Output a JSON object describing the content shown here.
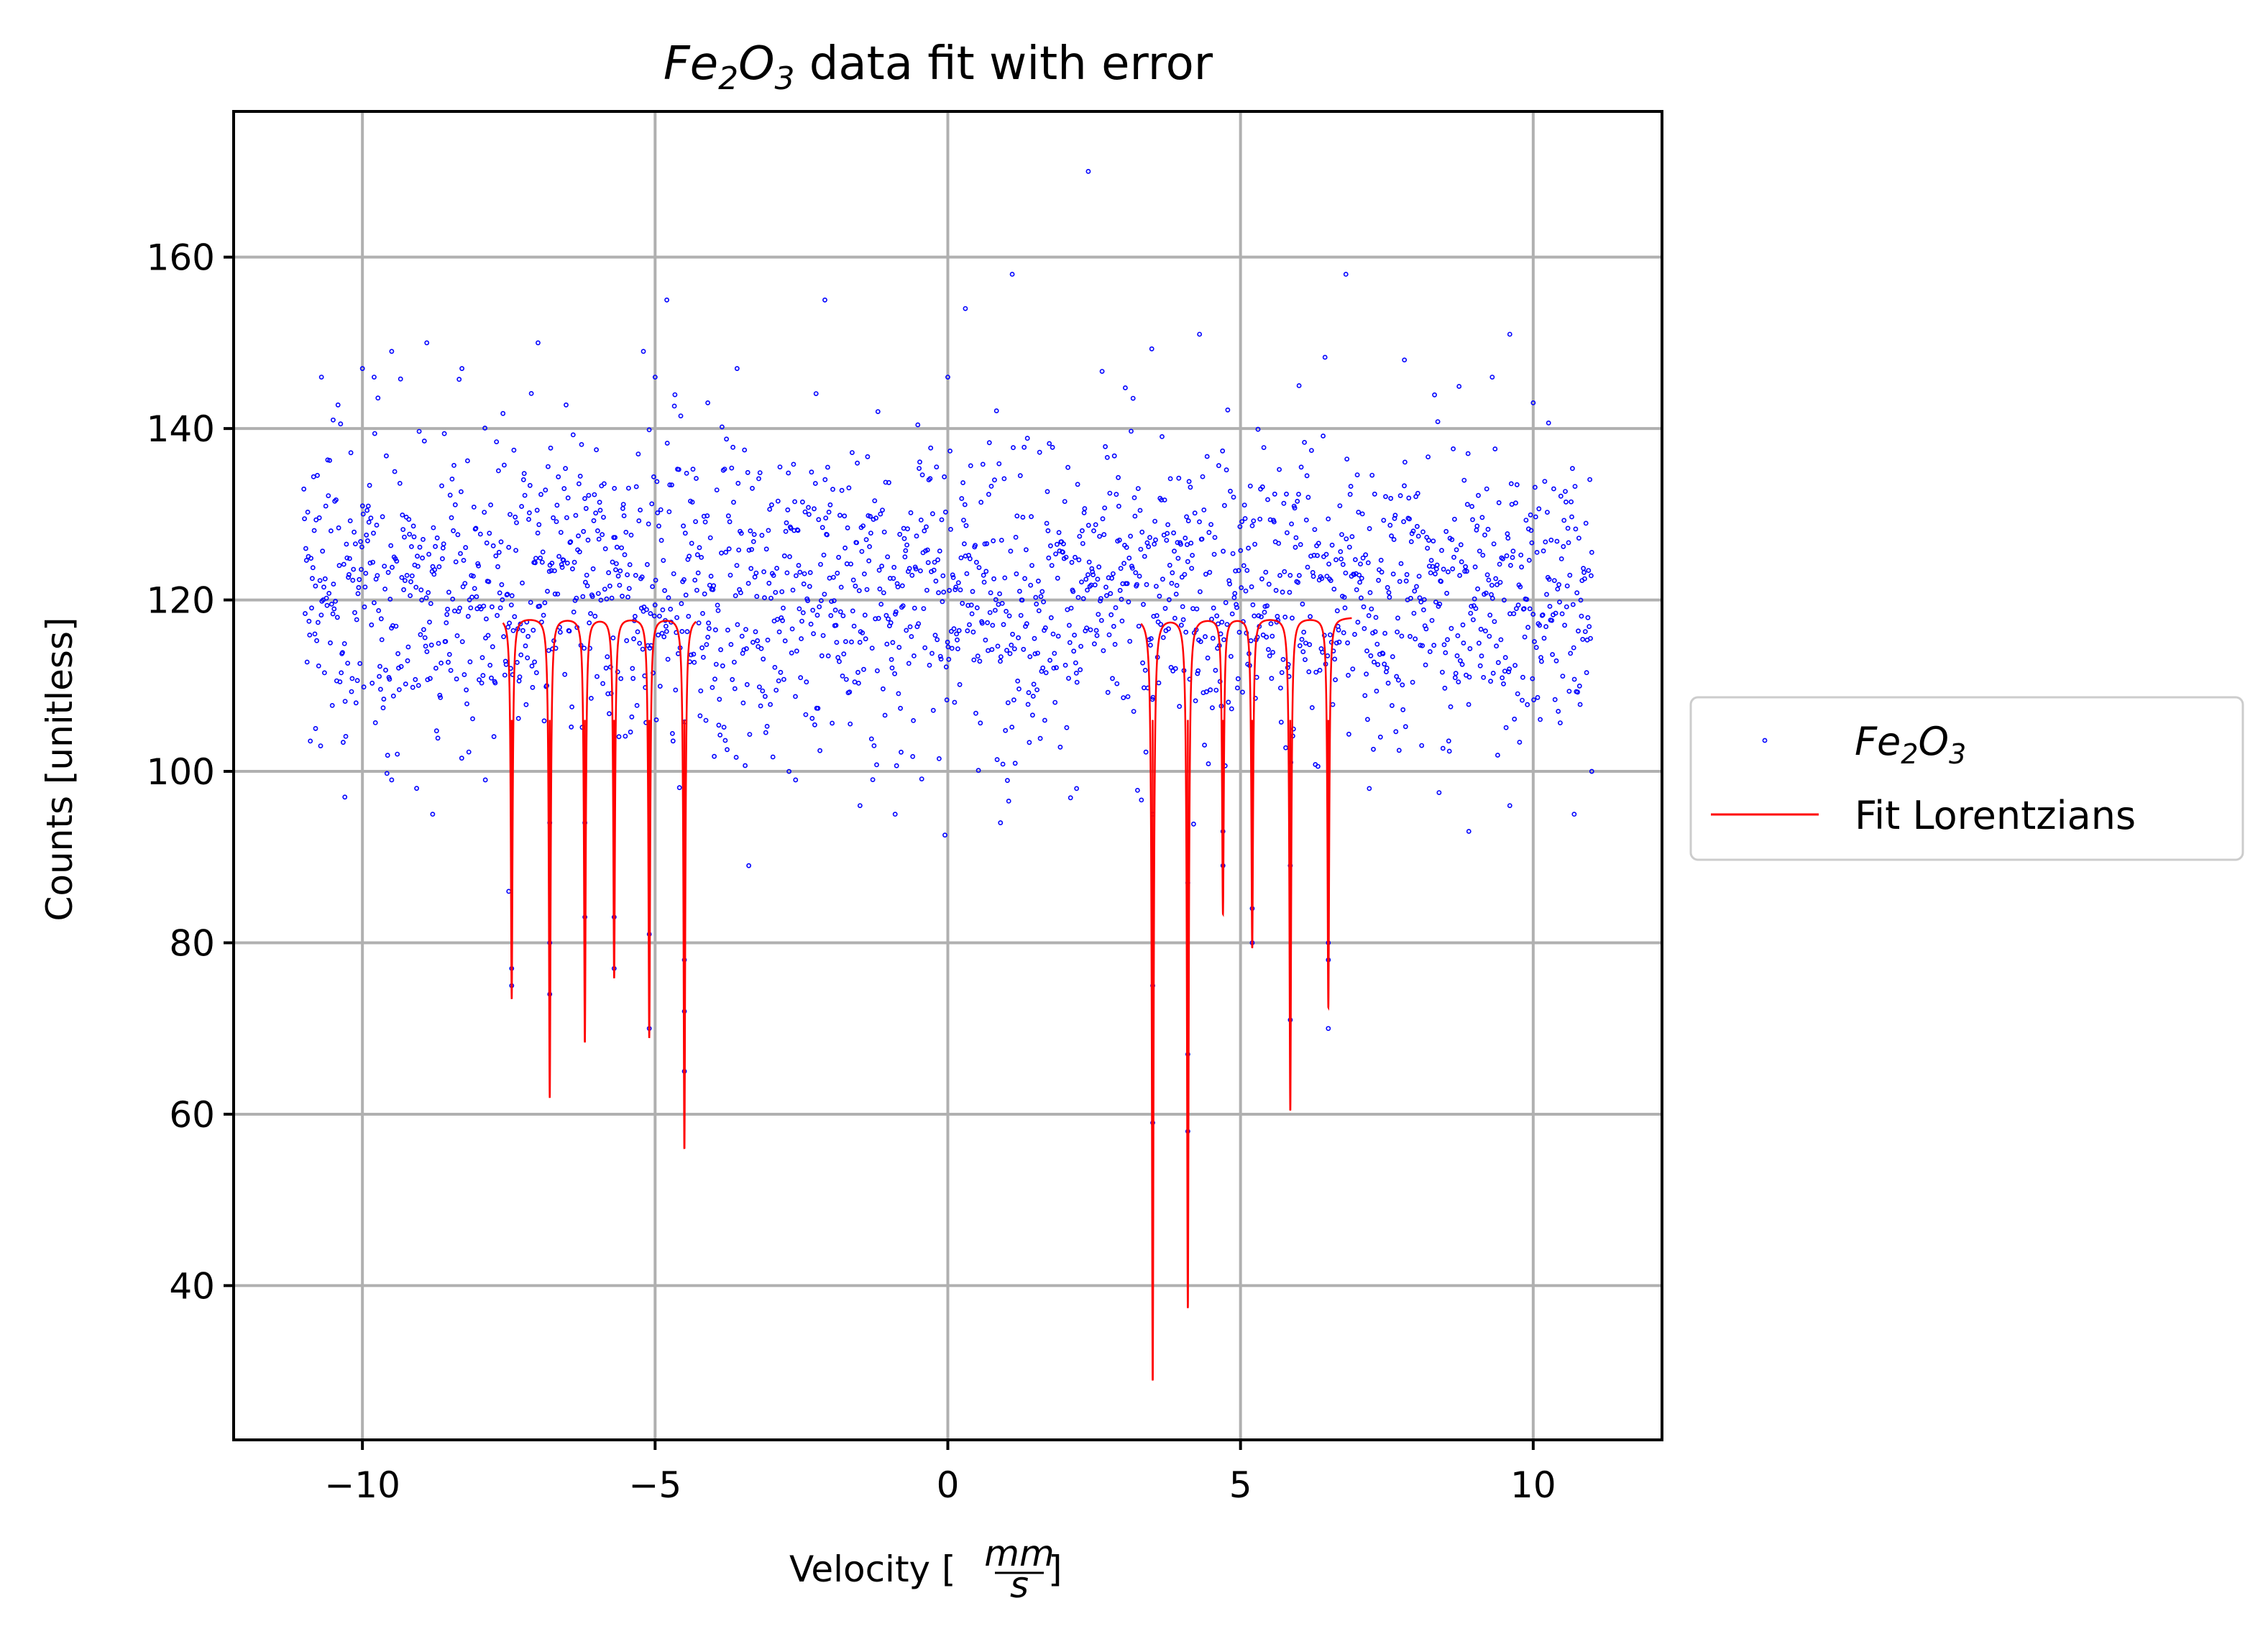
{
  "chart_data": {
    "type": "scatter",
    "title": {
      "base1": "Fe",
      "sub1": "2",
      "base2": "O",
      "sub2": "3",
      "rest": " data fit with error"
    },
    "xlabel": {
      "prefix": "Velocity [",
      "frac_num": "mm",
      "frac_den": "s",
      "suffix": "]"
    },
    "ylabel": "Counts [unitless]",
    "xlim": [
      -12.2,
      12.2
    ],
    "ylim": [
      22,
      177
    ],
    "x_ticks": [
      -10,
      -5,
      0,
      5,
      10
    ],
    "x_tick_labels": [
      "−10",
      "−5",
      "0",
      "5",
      "10"
    ],
    "y_ticks": [
      40,
      60,
      80,
      100,
      120,
      140,
      160
    ],
    "y_tick_labels": [
      "40",
      "60",
      "80",
      "100",
      "120",
      "140",
      "160"
    ],
    "grid": true,
    "legend_placement": "right-outside",
    "legend": [
      {
        "kind": "points",
        "base1": "Fe",
        "sub1": "2",
        "base2": "O",
        "sub2": "3"
      },
      {
        "kind": "line",
        "text": "Fit Lorentzians"
      }
    ],
    "colors": {
      "data": "#0000ff",
      "fit": "#ff0000",
      "grid": "#b0b0b0"
    },
    "scatter": {
      "name": "Fe2O3",
      "x_range": [
        -11,
        11
      ],
      "n_points": 2000,
      "baseline": 121,
      "spread": 9,
      "outliers": [
        [
          2.4,
          170
        ],
        [
          1.1,
          158
        ],
        [
          6.8,
          158
        ],
        [
          -2.1,
          155
        ],
        [
          -4.8,
          155
        ],
        [
          0.3,
          154
        ],
        [
          9.6,
          151
        ],
        [
          4.3,
          151
        ],
        [
          -9.5,
          149
        ],
        [
          -8.9,
          150
        ],
        [
          -7.0,
          150
        ],
        [
          -5.2,
          149
        ],
        [
          -8.3,
          147
        ],
        [
          -10.0,
          147
        ],
        [
          -9.8,
          146
        ],
        [
          -5.0,
          146
        ],
        [
          6.0,
          145
        ],
        [
          9.3,
          146
        ],
        [
          -3.6,
          147
        ],
        [
          -10.7,
          146
        ],
        [
          0.0,
          146
        ],
        [
          7.8,
          148
        ],
        [
          -10.8,
          105
        ],
        [
          -10.3,
          97
        ],
        [
          -3.4,
          89
        ],
        [
          -9.5,
          99
        ],
        [
          -7.9,
          99
        ],
        [
          -2.6,
          99
        ],
        [
          -1.5,
          96
        ],
        [
          -0.9,
          95
        ],
        [
          0.9,
          94
        ],
        [
          2.2,
          98
        ],
        [
          3.5,
          95
        ],
        [
          7.2,
          98
        ],
        [
          8.9,
          93
        ],
        [
          9.6,
          96
        ],
        [
          10.7,
          95
        ],
        [
          11.0,
          100
        ],
        [
          -8.8,
          95
        ],
        [
          -10.5,
          141
        ],
        [
          10.0,
          143
        ],
        [
          -4.1,
          143
        ]
      ]
    },
    "fit": {
      "name": "Fit Lorentzians",
      "baseline": 118,
      "half_width": 0.018,
      "segments": [
        [
          -7.6,
          -4.3
        ],
        [
          3.3,
          6.9
        ]
      ],
      "peaks": [
        {
          "center": -7.45,
          "min": 73.5
        },
        {
          "center": -6.8,
          "min": 62
        },
        {
          "center": -6.2,
          "min": 68.5
        },
        {
          "center": -5.7,
          "min": 76
        },
        {
          "center": -5.1,
          "min": 69
        },
        {
          "center": -4.5,
          "min": 56
        },
        {
          "center": 3.5,
          "min": 29
        },
        {
          "center": 4.1,
          "min": 37.5
        },
        {
          "center": 4.7,
          "min": 83.5
        },
        {
          "center": 5.2,
          "min": 79.5
        },
        {
          "center": 5.85,
          "min": 60.5
        },
        {
          "center": 6.5,
          "min": 72.5
        }
      ],
      "sample_points": [
        [
          -7.45,
          77
        ],
        [
          -7.45,
          75
        ],
        [
          -7.5,
          86
        ],
        [
          -6.8,
          74
        ],
        [
          -6.8,
          80
        ],
        [
          -6.8,
          94
        ],
        [
          -6.2,
          83
        ],
        [
          -6.2,
          94
        ],
        [
          -5.7,
          77
        ],
        [
          -5.7,
          83
        ],
        [
          -5.1,
          70
        ],
        [
          -5.1,
          81
        ],
        [
          -4.5,
          65
        ],
        [
          -4.5,
          72
        ],
        [
          -4.5,
          78
        ],
        [
          3.5,
          59
        ],
        [
          3.5,
          75
        ],
        [
          4.1,
          58
        ],
        [
          4.1,
          67
        ],
        [
          4.1,
          87
        ],
        [
          4.7,
          89
        ],
        [
          4.7,
          93
        ],
        [
          5.2,
          80
        ],
        [
          5.2,
          84
        ],
        [
          5.85,
          71
        ],
        [
          5.85,
          89
        ],
        [
          6.5,
          70
        ],
        [
          6.5,
          78
        ],
        [
          6.5,
          80
        ]
      ]
    }
  }
}
